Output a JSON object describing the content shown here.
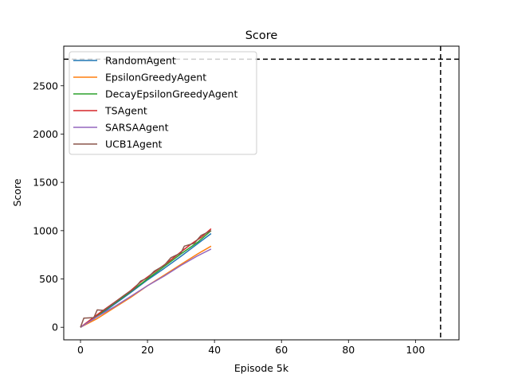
{
  "chart_data": {
    "type": "line",
    "title": "Score",
    "xlabel": "Episode 5k",
    "ylabel": "Score",
    "xlim": [
      -5,
      113
    ],
    "ylim": [
      -130,
      2910
    ],
    "x_ticks": [
      0,
      20,
      40,
      60,
      80,
      100
    ],
    "y_ticks": [
      0,
      500,
      1000,
      1500,
      2000,
      2500
    ],
    "grid": false,
    "legend_position": "top-left",
    "reference_lines": {
      "horizontal_y": 2775,
      "vertical_x": 107.5,
      "style": "dashed",
      "color": "#000000"
    },
    "series": [
      {
        "name": "RandomAgent",
        "color": "#1f77b4",
        "x": [
          0,
          5,
          10,
          15,
          20,
          25,
          30,
          35,
          39
        ],
        "y": [
          0,
          110,
          235,
          360,
          490,
          610,
          735,
          865,
          970
        ]
      },
      {
        "name": "EpsilonGreedyAgent",
        "color": "#ff7f0e",
        "x": [
          0,
          5,
          10,
          15,
          20,
          25,
          30,
          35,
          39
        ],
        "y": [
          0,
          90,
          200,
          310,
          430,
          540,
          650,
          760,
          840
        ]
      },
      {
        "name": "DecayEpsilonGreedyAgent",
        "color": "#2ca02c",
        "x": [
          0,
          5,
          10,
          15,
          20,
          25,
          30,
          35,
          39
        ],
        "y": [
          0,
          120,
          245,
          370,
          500,
          630,
          760,
          880,
          1000
        ]
      },
      {
        "name": "TSAgent",
        "color": "#d62728",
        "x": [
          0,
          5,
          10,
          15,
          18,
          22,
          26,
          30,
          33,
          36,
          39
        ],
        "y": [
          0,
          130,
          255,
          380,
          470,
          570,
          670,
          780,
          860,
          930,
          1020
        ]
      },
      {
        "name": "SARSAAgent",
        "color": "#9467bd",
        "x": [
          0,
          5,
          10,
          15,
          20,
          25,
          30,
          35,
          39
        ],
        "y": [
          0,
          110,
          210,
          320,
          430,
          530,
          640,
          740,
          810
        ]
      },
      {
        "name": "UCB1Agent",
        "color": "#8c564b",
        "x": [
          0,
          1,
          4,
          5,
          7,
          10,
          13,
          16,
          18,
          20,
          22,
          25,
          27,
          30,
          31,
          34,
          36,
          39
        ],
        "y": [
          0,
          95,
          100,
          180,
          175,
          250,
          330,
          400,
          480,
          510,
          580,
          640,
          720,
          770,
          840,
          870,
          950,
          1000
        ]
      }
    ]
  }
}
